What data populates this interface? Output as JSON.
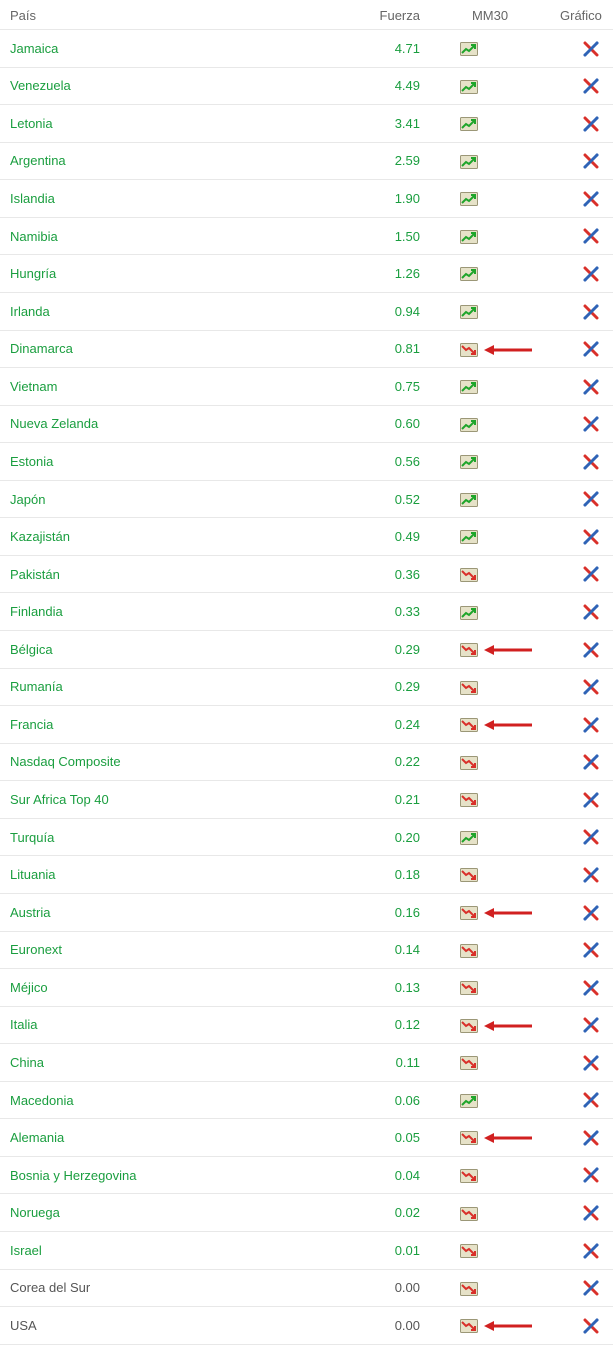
{
  "columns": {
    "pais": "País",
    "fuerza": "Fuerza",
    "mm30": "MM30",
    "grafico": "Gráfico"
  },
  "colors": {
    "link": "#1a9e3f",
    "text": "#666666",
    "border": "#e8e8e8",
    "up_line": "#1fa52b",
    "up_fill": "#e6e2c8",
    "down_line": "#d9302a",
    "down_fill": "#e6e2c8",
    "arrow": "#d12020",
    "xred": "#d9302a",
    "xblue": "#2f63b6",
    "icon_border": "#9b9777"
  },
  "rows": [
    {
      "country": "Jamaica",
      "link": true,
      "fuerza": "4.71",
      "fuerza_green": true,
      "trend": "up",
      "arrow": false
    },
    {
      "country": "Venezuela",
      "link": true,
      "fuerza": "4.49",
      "fuerza_green": true,
      "trend": "up",
      "arrow": false
    },
    {
      "country": "Letonia",
      "link": true,
      "fuerza": "3.41",
      "fuerza_green": true,
      "trend": "up",
      "arrow": false
    },
    {
      "country": "Argentina",
      "link": true,
      "fuerza": "2.59",
      "fuerza_green": true,
      "trend": "up",
      "arrow": false
    },
    {
      "country": "Islandia",
      "link": true,
      "fuerza": "1.90",
      "fuerza_green": true,
      "trend": "up",
      "arrow": false
    },
    {
      "country": "Namibia",
      "link": true,
      "fuerza": "1.50",
      "fuerza_green": true,
      "trend": "up",
      "arrow": false
    },
    {
      "country": "Hungría",
      "link": true,
      "fuerza": "1.26",
      "fuerza_green": true,
      "trend": "up",
      "arrow": false
    },
    {
      "country": "Irlanda",
      "link": true,
      "fuerza": "0.94",
      "fuerza_green": true,
      "trend": "up",
      "arrow": false
    },
    {
      "country": "Dinamarca",
      "link": true,
      "fuerza": "0.81",
      "fuerza_green": true,
      "trend": "down",
      "arrow": true
    },
    {
      "country": "Vietnam",
      "link": true,
      "fuerza": "0.75",
      "fuerza_green": true,
      "trend": "up",
      "arrow": false
    },
    {
      "country": "Nueva Zelanda",
      "link": true,
      "fuerza": "0.60",
      "fuerza_green": true,
      "trend": "up",
      "arrow": false
    },
    {
      "country": "Estonia",
      "link": true,
      "fuerza": "0.56",
      "fuerza_green": true,
      "trend": "up",
      "arrow": false
    },
    {
      "country": "Japón",
      "link": true,
      "fuerza": "0.52",
      "fuerza_green": true,
      "trend": "up",
      "arrow": false
    },
    {
      "country": "Kazajistán",
      "link": true,
      "fuerza": "0.49",
      "fuerza_green": true,
      "trend": "up",
      "arrow": false
    },
    {
      "country": "Pakistán",
      "link": true,
      "fuerza": "0.36",
      "fuerza_green": true,
      "trend": "down",
      "arrow": false
    },
    {
      "country": "Finlandia",
      "link": true,
      "fuerza": "0.33",
      "fuerza_green": true,
      "trend": "up",
      "arrow": false
    },
    {
      "country": "Bélgica",
      "link": true,
      "fuerza": "0.29",
      "fuerza_green": true,
      "trend": "down",
      "arrow": true
    },
    {
      "country": "Rumanía",
      "link": true,
      "fuerza": "0.29",
      "fuerza_green": true,
      "trend": "down",
      "arrow": false
    },
    {
      "country": "Francia",
      "link": true,
      "fuerza": "0.24",
      "fuerza_green": true,
      "trend": "down",
      "arrow": true
    },
    {
      "country": "Nasdaq Composite",
      "link": true,
      "fuerza": "0.22",
      "fuerza_green": true,
      "trend": "down",
      "arrow": false
    },
    {
      "country": "Sur Africa Top 40",
      "link": true,
      "fuerza": "0.21",
      "fuerza_green": true,
      "trend": "down",
      "arrow": false
    },
    {
      "country": "Turquía",
      "link": true,
      "fuerza": "0.20",
      "fuerza_green": true,
      "trend": "up",
      "arrow": false
    },
    {
      "country": "Lituania",
      "link": true,
      "fuerza": "0.18",
      "fuerza_green": true,
      "trend": "down",
      "arrow": false
    },
    {
      "country": "Austria",
      "link": true,
      "fuerza": "0.16",
      "fuerza_green": true,
      "trend": "down",
      "arrow": true
    },
    {
      "country": "Euronext",
      "link": true,
      "fuerza": "0.14",
      "fuerza_green": true,
      "trend": "down",
      "arrow": false
    },
    {
      "country": "Méjico",
      "link": true,
      "fuerza": "0.13",
      "fuerza_green": true,
      "trend": "down",
      "arrow": false
    },
    {
      "country": "Italia",
      "link": true,
      "fuerza": "0.12",
      "fuerza_green": true,
      "trend": "down",
      "arrow": true
    },
    {
      "country": "China",
      "link": true,
      "fuerza": "0.11",
      "fuerza_green": true,
      "trend": "down",
      "arrow": false
    },
    {
      "country": "Macedonia",
      "link": true,
      "fuerza": "0.06",
      "fuerza_green": true,
      "trend": "up",
      "arrow": false
    },
    {
      "country": "Alemania",
      "link": true,
      "fuerza": "0.05",
      "fuerza_green": true,
      "trend": "down",
      "arrow": true
    },
    {
      "country": "Bosnia y Herzegovina",
      "link": true,
      "fuerza": "0.04",
      "fuerza_green": true,
      "trend": "down",
      "arrow": false
    },
    {
      "country": "Noruega",
      "link": true,
      "fuerza": "0.02",
      "fuerza_green": true,
      "trend": "down",
      "arrow": false
    },
    {
      "country": "Israel",
      "link": true,
      "fuerza": "0.01",
      "fuerza_green": true,
      "trend": "down",
      "arrow": false
    },
    {
      "country": "Corea del Sur",
      "link": false,
      "fuerza": "0.00",
      "fuerza_green": false,
      "trend": "down",
      "arrow": false
    },
    {
      "country": "USA",
      "link": false,
      "fuerza": "0.00",
      "fuerza_green": false,
      "trend": "down",
      "arrow": true
    }
  ]
}
